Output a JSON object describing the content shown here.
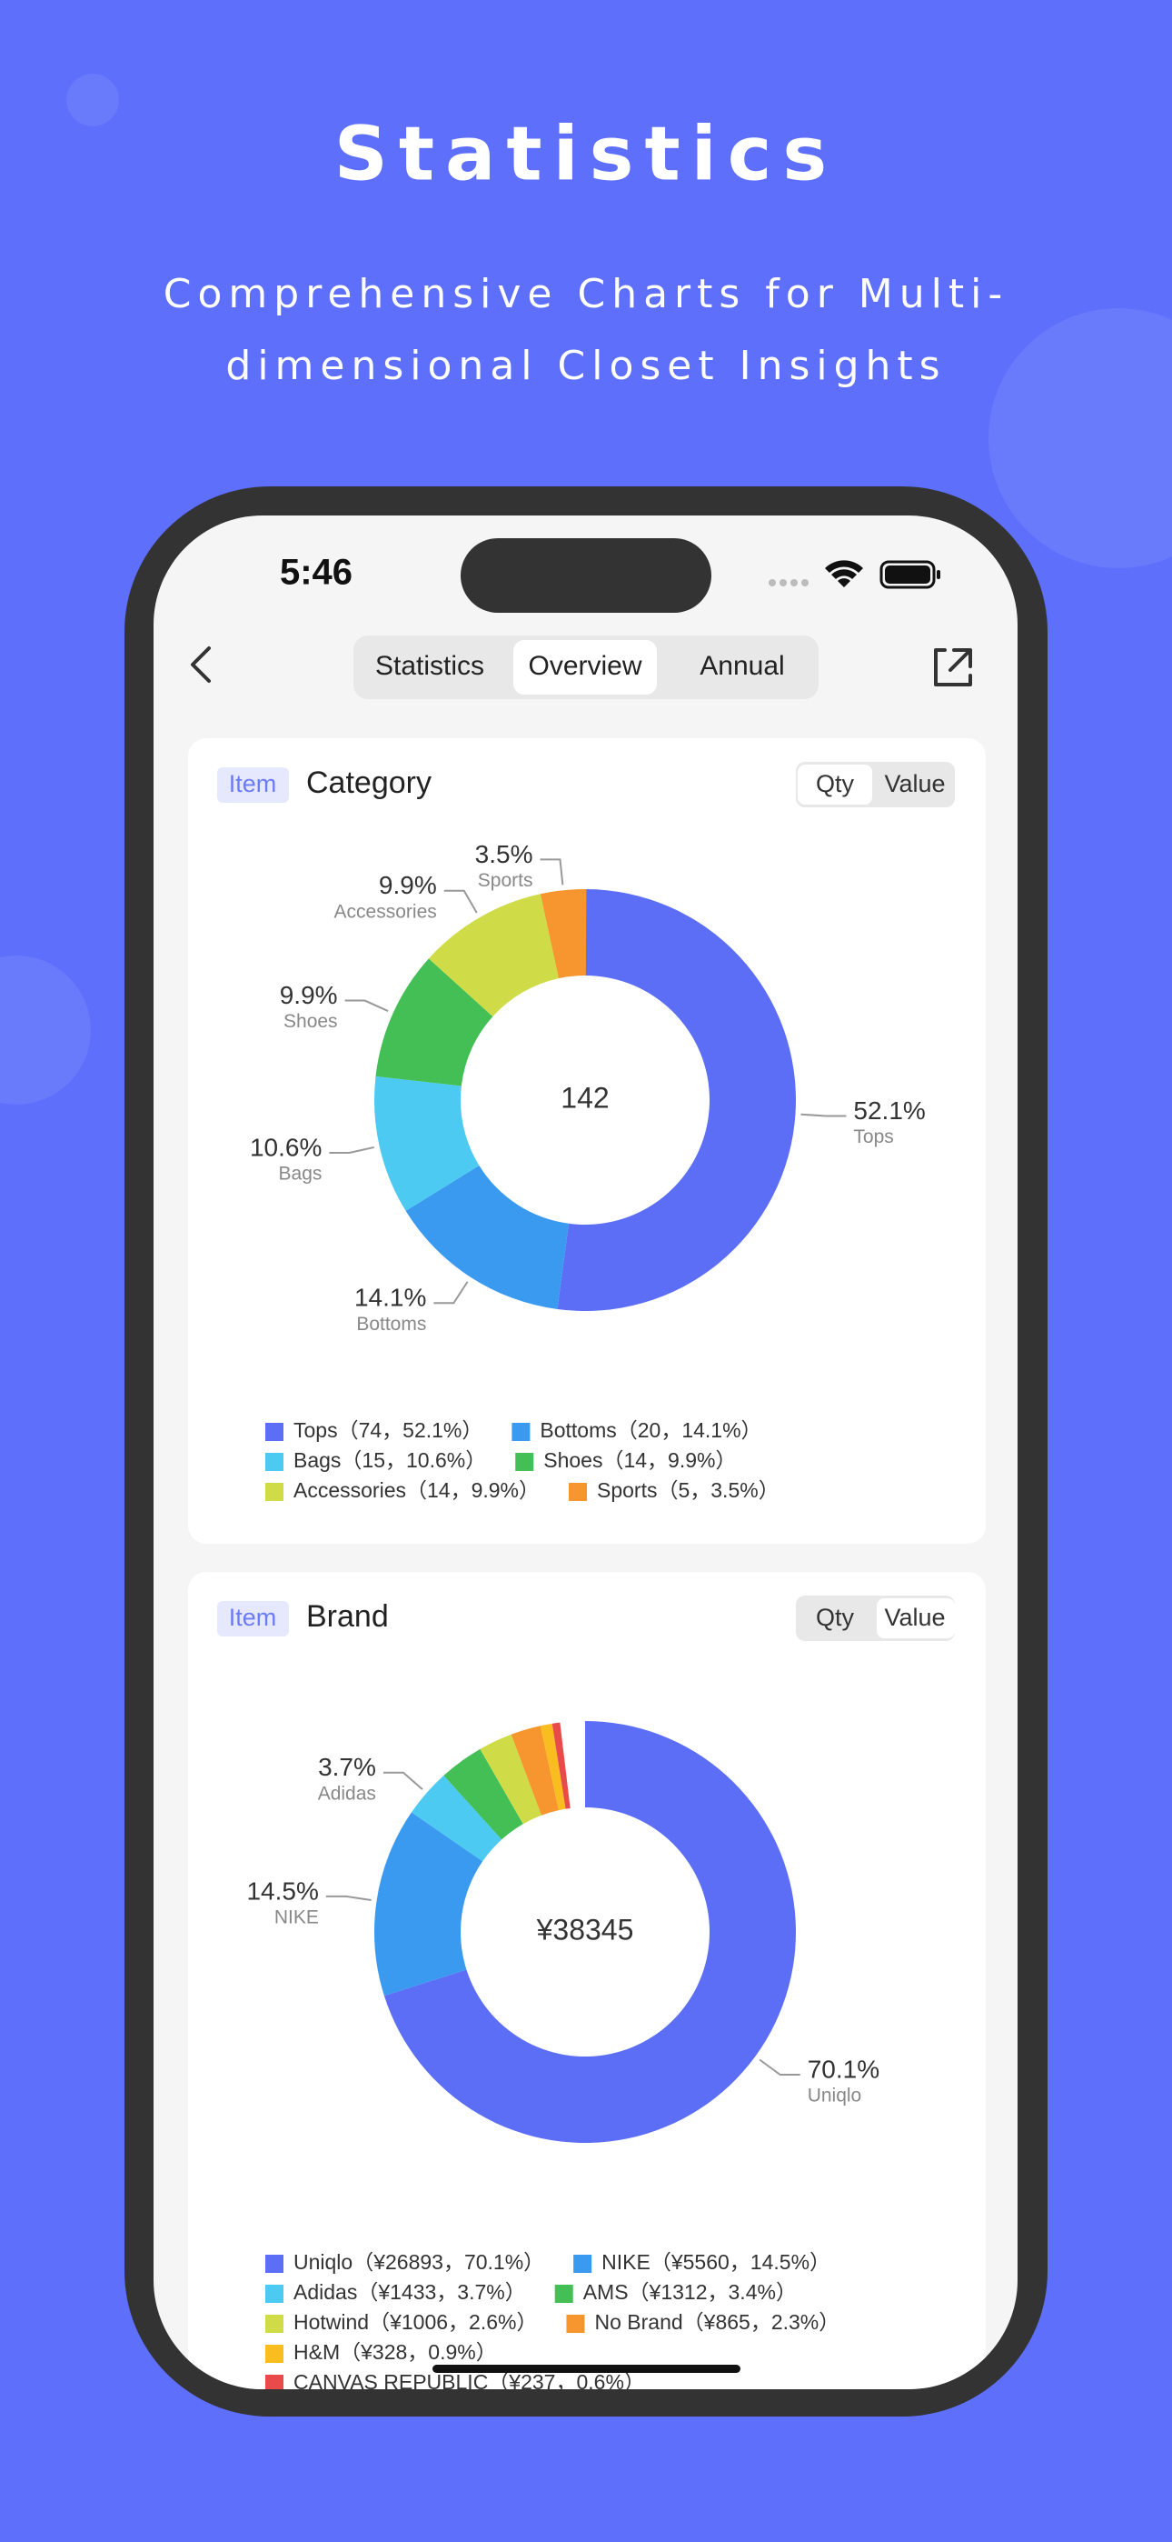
{
  "header": {
    "title": "Statistics",
    "subtitle": [
      "Comprehensive Charts for Multi-",
      "dimensional Closet Insights"
    ]
  },
  "status_bar": {
    "time": "5:46"
  },
  "tabs": {
    "items": [
      "Statistics",
      "Overview",
      "Annual"
    ],
    "selected": 1
  },
  "cards": [
    {
      "tag": "Item",
      "title": "Category",
      "toggle": [
        "Qty",
        "Value"
      ],
      "toggle_selected": 0,
      "chart_data": {
        "type": "donut",
        "total": 142,
        "categories": [
          "Tops",
          "Bottoms",
          "Bags",
          "Shoes",
          "Accessories",
          "Sports"
        ],
        "values": [
          52.1,
          14.1,
          10.6,
          9.9,
          9.9,
          3.5
        ],
        "value_labels": [
          "52.1%",
          "14.1%",
          "10.6%",
          "9.9%",
          "9.9%",
          "3.5%"
        ],
        "colors": [
          "#5b6ef5",
          "#3a9af0",
          "#4ccaf2",
          "#43bf55",
          "#cfdc47",
          "#f7962e"
        ],
        "legend": [
          "Tops（74，52.1%）",
          "Bottoms（20，14.1%）",
          "Bags（15，10.6%）",
          "Shoes（14，9.9%）",
          "Accessories（14，9.9%）",
          "Sports（5，3.5%）"
        ]
      }
    },
    {
      "tag": "Item",
      "title": "Brand",
      "toggle": [
        "Qty",
        "Value"
      ],
      "toggle_selected": 1,
      "chart_data": {
        "type": "donut",
        "total": 38345,
        "total_label": "¥38345",
        "categories": [
          "Uniqlo",
          "NIKE",
          "Adidas",
          "AMS",
          "Hotwind",
          "No Brand",
          "H&M",
          "CANVAS REPUBLIC"
        ],
        "values": [
          70.1,
          14.5,
          3.7,
          3.4,
          2.6,
          2.3,
          0.9,
          0.6
        ],
        "value_labels": [
          "70.1%",
          "14.5%",
          "3.7%",
          null,
          null,
          null,
          null,
          null
        ],
        "colors": [
          "#5b6ef5",
          "#3a9af0",
          "#4ccaf2",
          "#43bf55",
          "#cfdc47",
          "#f7962e",
          "#f9bd1f",
          "#e94b4b"
        ],
        "legend": [
          "Uniqlo（¥26893，70.1%）",
          "NIKE（¥5560，14.5%）",
          "Adidas（¥1433，3.7%）",
          "AMS（¥1312，3.4%）",
          "Hotwind（¥1006，2.6%）",
          "No Brand（¥865，2.3%）",
          "H&M（¥328，0.9%）",
          "CANVAS REPUBLIC（¥237，0.6%）"
        ]
      }
    }
  ]
}
